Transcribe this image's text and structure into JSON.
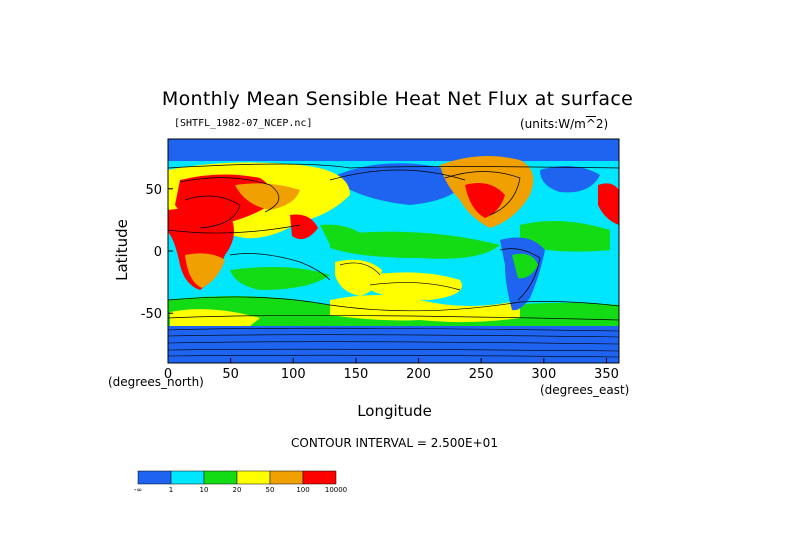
{
  "chart_data": {
    "type": "heatmap",
    "title": "Monthly Mean Sensible Heat Net Flux at surface",
    "source_label": "[SHTFL_1982-07_NCEP.nc]",
    "units_label": "(units:W/m^2)",
    "xlabel": "Longitude",
    "ylabel": "Latitude",
    "x_unit_label": "(degrees_east)",
    "y_unit_label": "(degrees_north)",
    "xlim": [
      0,
      360
    ],
    "ylim": [
      -90,
      90
    ],
    "x_ticks": [
      0,
      50,
      100,
      150,
      200,
      250,
      300,
      350
    ],
    "y_ticks": [
      -50,
      0,
      50
    ],
    "contour_interval_text": "CONTOUR INTERVAL = 2.500E+01",
    "legend": {
      "labels": [
        "-∞",
        "1",
        "10",
        "20",
        "50",
        "100",
        "10000"
      ],
      "colors": [
        "#1e64f0",
        "#00e6ff",
        "#14dc14",
        "#ffff00",
        "#f0a000",
        "#ff0000"
      ]
    }
  }
}
